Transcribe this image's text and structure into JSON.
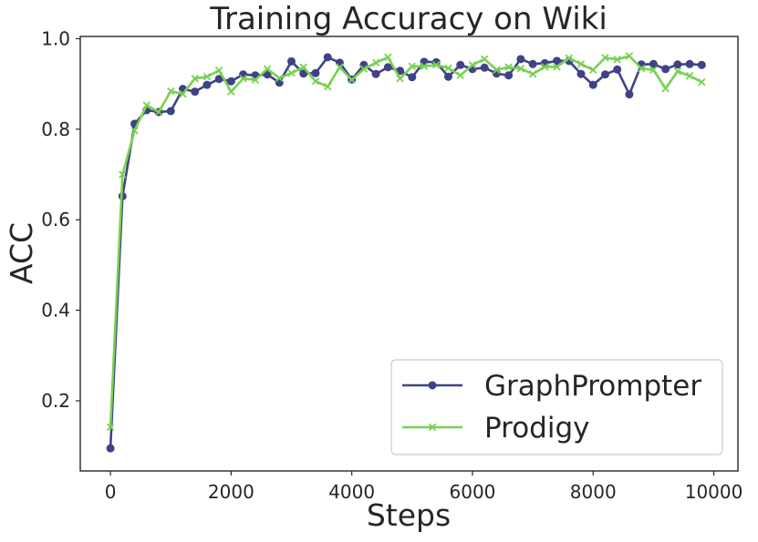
{
  "chart_data": {
    "type": "line",
    "title": "Training Accuracy on Wiki",
    "xlabel": "Steps",
    "ylabel": "ACC",
    "xlim": [
      -500,
      10400
    ],
    "ylim": [
      0.045,
      1.005
    ],
    "x_ticks": [
      0,
      2000,
      4000,
      6000,
      8000,
      10000
    ],
    "x_tick_labels": [
      "0",
      "2000",
      "4000",
      "6000",
      "8000",
      "10000"
    ],
    "y_ticks": [
      0.2,
      0.4,
      0.6,
      0.8,
      1.0
    ],
    "y_tick_labels": [
      "0.2",
      "0.4",
      "0.6",
      "0.8",
      "1.0"
    ],
    "grid": false,
    "legend_position": "lower-right",
    "x": [
      0,
      200,
      400,
      600,
      800,
      1000,
      1200,
      1400,
      1600,
      1800,
      2000,
      2200,
      2400,
      2600,
      2800,
      3000,
      3200,
      3400,
      3600,
      3800,
      4000,
      4200,
      4400,
      4600,
      4800,
      5000,
      5200,
      5400,
      5600,
      5800,
      6000,
      6200,
      6400,
      6600,
      6800,
      7000,
      7200,
      7400,
      7600,
      7800,
      8000,
      8200,
      8400,
      8600,
      8800,
      9000,
      9200,
      9400,
      9600,
      9800
    ],
    "series": [
      {
        "name": "GraphPrompter",
        "color": "#3f4287",
        "marker": "circle",
        "values": [
          0.095,
          0.652,
          0.812,
          0.842,
          0.838,
          0.84,
          0.889,
          0.883,
          0.898,
          0.911,
          0.906,
          0.921,
          0.919,
          0.921,
          0.903,
          0.95,
          0.923,
          0.924,
          0.959,
          0.947,
          0.91,
          0.942,
          0.922,
          0.937,
          0.929,
          0.915,
          0.949,
          0.948,
          0.916,
          0.942,
          0.933,
          0.936,
          0.923,
          0.919,
          0.955,
          0.944,
          0.946,
          0.951,
          0.951,
          0.922,
          0.898,
          0.921,
          0.932,
          0.877,
          0.943,
          0.944,
          0.933,
          0.943,
          0.944,
          0.942
        ]
      },
      {
        "name": "Prodigy",
        "color": "#78d151",
        "marker": "x",
        "values": [
          0.142,
          0.7,
          0.797,
          0.853,
          0.838,
          0.884,
          0.878,
          0.912,
          0.916,
          0.93,
          0.883,
          0.912,
          0.909,
          0.933,
          0.913,
          0.924,
          0.937,
          0.906,
          0.894,
          0.937,
          0.909,
          0.933,
          0.947,
          0.959,
          0.912,
          0.939,
          0.939,
          0.942,
          0.935,
          0.919,
          0.942,
          0.955,
          0.931,
          0.937,
          0.934,
          0.922,
          0.938,
          0.938,
          0.957,
          0.944,
          0.931,
          0.958,
          0.954,
          0.962,
          0.934,
          0.931,
          0.89,
          0.928,
          0.918,
          0.904
        ]
      }
    ]
  }
}
